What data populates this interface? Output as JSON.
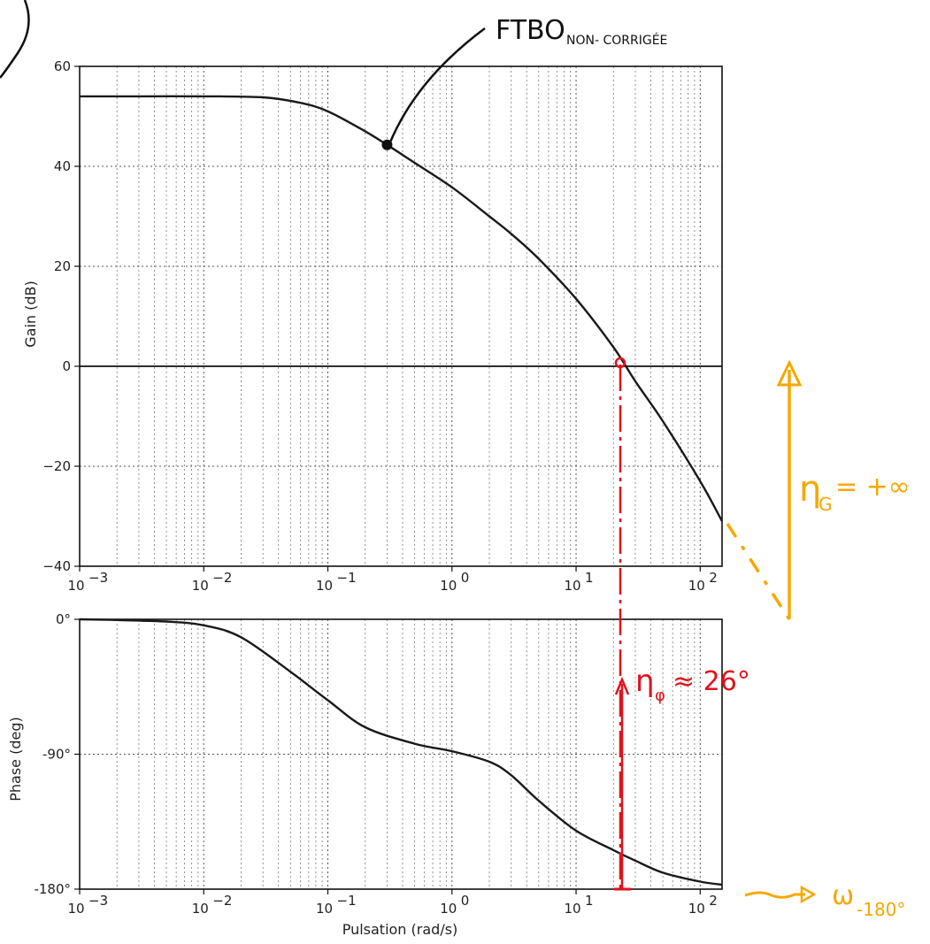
{
  "chart_data": [
    {
      "type": "line",
      "ylabel": "Gain (dB)",
      "xlabel": "",
      "xscale": "log",
      "xlim": [
        0.001,
        150
      ],
      "ylim": [
        -40,
        60
      ],
      "grid": true,
      "xticks": [
        "10",
        "10",
        "10",
        "10",
        "10",
        "10"
      ],
      "xtick_exponents": [
        "−3",
        "−2",
        "−1",
        "0",
        "1",
        "2"
      ],
      "yticks": [
        "60",
        "40",
        "20",
        "0",
        "−20",
        "−40"
      ],
      "series": [
        {
          "x": [
            0.001,
            0.003,
            0.01,
            0.03,
            0.06,
            0.1,
            0.2,
            0.3,
            0.5,
            1,
            2,
            3,
            5,
            10,
            20,
            30,
            50,
            100,
            150
          ],
          "y": [
            54,
            54,
            54,
            53.8,
            52.7,
            51,
            47,
            44.3,
            40.7,
            35.8,
            30,
            26.5,
            21.5,
            13.5,
            3.8,
            -3,
            -11,
            -23,
            -31
          ]
        }
      ],
      "annotations": [
        {
          "text_main": "FTBO",
          "text_sub": "NON- CORRIGÉE",
          "x": 0.3,
          "y": 44.3
        },
        {
          "text": "η",
          "sub": "G",
          "rest": "= +∞"
        }
      ],
      "crossover": {
        "x": 22,
        "y": 0
      }
    },
    {
      "type": "line",
      "ylabel": "Phase (deg)",
      "xlabel": "Pulsation (rad/s)",
      "xscale": "log",
      "xlim": [
        0.001,
        150
      ],
      "ylim": [
        -180,
        0
      ],
      "grid": true,
      "xticks": [
        "10",
        "10",
        "10",
        "10",
        "10",
        "10"
      ],
      "xtick_exponents": [
        "−3",
        "−2",
        "−1",
        "0",
        "1",
        "2"
      ],
      "yticks": [
        "0°",
        "-90°",
        "-180°"
      ],
      "series": [
        {
          "x": [
            0.001,
            0.002,
            0.005,
            0.01,
            0.02,
            0.05,
            0.1,
            0.2,
            0.5,
            1,
            2,
            3,
            5,
            10,
            20,
            30,
            50,
            100,
            150
          ],
          "y": [
            0,
            -0.5,
            -1.5,
            -4,
            -12,
            -35,
            -54,
            -72,
            -83,
            -88,
            -95,
            -104,
            -121,
            -141,
            -154,
            -161,
            -169,
            -175,
            -177
          ]
        }
      ],
      "annotations": [
        {
          "text": "η",
          "sub": "φ",
          "rest": "≈ 26°"
        },
        {
          "text": "ω",
          "sub": "-180°"
        }
      ]
    }
  ],
  "colors": {
    "curve": "#1a1a1a",
    "annotation_red": "#e0121c",
    "annotation_orange": "#f5a800"
  }
}
